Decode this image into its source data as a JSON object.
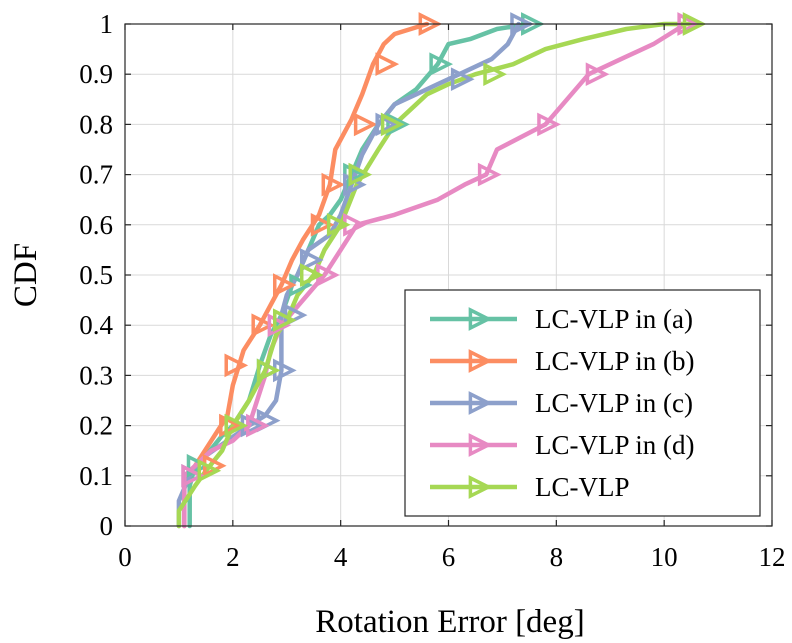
{
  "chart_data": {
    "type": "line",
    "title": "",
    "xlabel": "Rotation Error [deg]",
    "ylabel": "CDF",
    "xlim": [
      0,
      12
    ],
    "ylim": [
      0,
      1
    ],
    "xticks": [
      0,
      2,
      4,
      6,
      8,
      10,
      12
    ],
    "yticks": [
      0,
      0.1,
      0.2,
      0.3,
      0.4,
      0.5,
      0.6,
      0.7,
      0.8,
      0.9,
      1
    ],
    "grid": true,
    "legend_position": "bottom-right",
    "series": [
      {
        "name": "LC-VLP in (a)",
        "color": "#66c2a5",
        "x": [
          1.2,
          1.2,
          1.3,
          1.5,
          1.8,
          2.0,
          2.3,
          2.5,
          2.7,
          2.9,
          3.0,
          3.1,
          3.2,
          3.4,
          3.6,
          3.8,
          4.0,
          4.2,
          4.4,
          4.7,
          5.0,
          5.4,
          5.8,
          6.0,
          6.4,
          6.9,
          7.5
        ],
        "y": [
          0,
          0.08,
          0.12,
          0.14,
          0.18,
          0.2,
          0.25,
          0.32,
          0.38,
          0.42,
          0.45,
          0.48,
          0.5,
          0.55,
          0.6,
          0.62,
          0.65,
          0.7,
          0.75,
          0.8,
          0.84,
          0.87,
          0.92,
          0.96,
          0.97,
          0.99,
          1.0
        ]
      },
      {
        "name": "LC-VLP in (b)",
        "color": "#fc8d62",
        "x": [
          1.1,
          1.1,
          1.3,
          1.6,
          1.9,
          2.0,
          2.2,
          2.5,
          2.7,
          2.9,
          3.1,
          3.3,
          3.6,
          3.8,
          3.9,
          4.2,
          4.4,
          4.6,
          4.8,
          5.0,
          5.3,
          5.6
        ],
        "y": [
          0,
          0.08,
          0.12,
          0.17,
          0.22,
          0.28,
          0.35,
          0.4,
          0.44,
          0.48,
          0.53,
          0.57,
          0.62,
          0.68,
          0.75,
          0.81,
          0.86,
          0.92,
          0.96,
          0.98,
          0.99,
          1.0
        ]
      },
      {
        "name": "LC-VLP in (c)",
        "color": "#8da0cb",
        "x": [
          1.0,
          1.0,
          1.2,
          1.5,
          1.9,
          2.3,
          2.6,
          2.8,
          2.9,
          2.9,
          2.9,
          3.0,
          3.2,
          3.4,
          3.8,
          4.0,
          4.2,
          4.4,
          4.7,
          5.0,
          5.4,
          5.8,
          6.2,
          6.8,
          7.1,
          7.3
        ],
        "y": [
          0,
          0.05,
          0.1,
          0.14,
          0.17,
          0.2,
          0.22,
          0.25,
          0.31,
          0.38,
          0.42,
          0.46,
          0.5,
          0.55,
          0.58,
          0.62,
          0.68,
          0.74,
          0.8,
          0.84,
          0.86,
          0.88,
          0.9,
          0.93,
          0.96,
          1.0
        ]
      },
      {
        "name": "LC-VLP in (d)",
        "color": "#e78ac3",
        "x": [
          1.1,
          1.1,
          1.3,
          1.6,
          2.0,
          2.3,
          2.6,
          2.7,
          2.9,
          3.3,
          3.7,
          4.0,
          4.3,
          5.0,
          5.8,
          6.3,
          6.7,
          6.9,
          7.8,
          8.2,
          8.6,
          9.2,
          9.8,
          10.4
        ],
        "y": [
          0,
          0.1,
          0.12,
          0.15,
          0.17,
          0.2,
          0.3,
          0.35,
          0.4,
          0.45,
          0.5,
          0.55,
          0.6,
          0.62,
          0.65,
          0.68,
          0.7,
          0.75,
          0.8,
          0.85,
          0.9,
          0.93,
          0.96,
          1.0
        ]
      },
      {
        "name": "LC-VLP",
        "color": "#a6d854",
        "x": [
          1.0,
          1.0,
          1.3,
          1.5,
          1.8,
          2.0,
          2.3,
          2.6,
          2.8,
          3.0,
          3.2,
          3.5,
          3.7,
          4.0,
          4.3,
          4.7,
          5.0,
          5.3,
          5.6,
          6.0,
          6.5,
          7.2,
          7.8,
          8.5,
          9.3,
          10.0,
          10.5
        ],
        "y": [
          0,
          0.03,
          0.08,
          0.11,
          0.15,
          0.2,
          0.25,
          0.31,
          0.38,
          0.41,
          0.46,
          0.5,
          0.55,
          0.6,
          0.68,
          0.75,
          0.8,
          0.83,
          0.86,
          0.88,
          0.9,
          0.92,
          0.95,
          0.97,
          0.99,
          1.0,
          1.0
        ]
      }
    ],
    "markers": [
      {
        "series": 0,
        "points": [
          [
            1.3,
            0.12
          ],
          [
            2.6,
            0.31
          ],
          [
            3.2,
            0.48
          ],
          [
            4.2,
            0.7
          ],
          [
            5.0,
            0.8
          ],
          [
            5.8,
            0.92
          ],
          [
            7.5,
            1.0
          ]
        ]
      },
      {
        "series": 1,
        "points": [
          [
            1.6,
            0.12
          ],
          [
            1.9,
            0.2
          ],
          [
            2.0,
            0.32
          ],
          [
            2.5,
            0.4
          ],
          [
            2.9,
            0.48
          ],
          [
            3.6,
            0.6
          ],
          [
            3.8,
            0.68
          ],
          [
            4.4,
            0.8
          ],
          [
            4.8,
            0.92
          ],
          [
            5.6,
            1.0
          ]
        ]
      },
      {
        "series": 2,
        "points": [
          [
            1.2,
            0.1
          ],
          [
            2.3,
            0.2
          ],
          [
            2.6,
            0.21
          ],
          [
            2.9,
            0.31
          ],
          [
            3.1,
            0.42
          ],
          [
            3.4,
            0.53
          ],
          [
            4.2,
            0.68
          ],
          [
            4.8,
            0.8
          ],
          [
            6.2,
            0.89
          ],
          [
            7.3,
            1.0
          ]
        ]
      },
      {
        "series": 3,
        "points": [
          [
            1.2,
            0.1
          ],
          [
            2.4,
            0.2
          ],
          [
            2.8,
            0.4
          ],
          [
            3.7,
            0.5
          ],
          [
            4.2,
            0.6
          ],
          [
            6.7,
            0.7
          ],
          [
            7.8,
            0.8
          ],
          [
            8.7,
            0.9
          ],
          [
            10.4,
            1.0
          ]
        ]
      },
      {
        "series": 4,
        "points": [
          [
            1.5,
            0.11
          ],
          [
            2.0,
            0.2
          ],
          [
            2.6,
            0.31
          ],
          [
            2.9,
            0.41
          ],
          [
            3.4,
            0.5
          ],
          [
            3.9,
            0.6
          ],
          [
            4.3,
            0.7
          ],
          [
            4.9,
            0.8
          ],
          [
            6.8,
            0.9
          ],
          [
            10.5,
            1.0
          ]
        ]
      }
    ]
  }
}
